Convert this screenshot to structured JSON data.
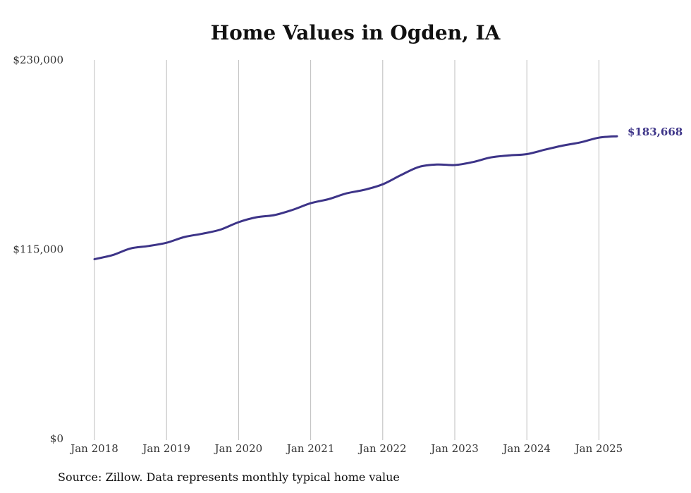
{
  "chart_data": {
    "type": "line",
    "title": "Home Values in Ogden, IA",
    "source": "Source: Zillow. Data represents monthly typical home value",
    "ylim": [
      0,
      230000
    ],
    "y_ticks": [
      {
        "value": 0,
        "label": "$0"
      },
      {
        "value": 115000,
        "label": "$115,000"
      },
      {
        "value": 230000,
        "label": "$230,000"
      }
    ],
    "x_ticks": [
      {
        "value": "2018-01",
        "label": "Jan 2018"
      },
      {
        "value": "2019-01",
        "label": "Jan 2019"
      },
      {
        "value": "2020-01",
        "label": "Jan 2020"
      },
      {
        "value": "2021-01",
        "label": "Jan 2021"
      },
      {
        "value": "2022-01",
        "label": "Jan 2022"
      },
      {
        "value": "2023-01",
        "label": "Jan 2023"
      },
      {
        "value": "2024-01",
        "label": "Jan 2024"
      },
      {
        "value": "2025-01",
        "label": "Jan 2025"
      }
    ],
    "grid": "vertical",
    "line_color": "#3d3488",
    "end_label": "$183,668",
    "series": [
      {
        "x": [
          "2018-01",
          "2018-04",
          "2018-07",
          "2018-10",
          "2019-01",
          "2019-04",
          "2019-07",
          "2019-10",
          "2020-01",
          "2020-04",
          "2020-07",
          "2020-10",
          "2021-01",
          "2021-04",
          "2021-07",
          "2021-10",
          "2022-01",
          "2022-04",
          "2022-07",
          "2022-10",
          "2023-01",
          "2023-04",
          "2023-07",
          "2023-10",
          "2024-01",
          "2024-04",
          "2024-07",
          "2024-10",
          "2025-01",
          "2025-04"
        ],
        "y": [
          109000,
          111500,
          115500,
          117000,
          119000,
          122500,
          124500,
          127000,
          131500,
          134500,
          135800,
          139000,
          143000,
          145500,
          149000,
          151200,
          154500,
          160000,
          165000,
          166500,
          166200,
          168000,
          170800,
          172000,
          172800,
          175500,
          178000,
          180000,
          182800,
          183668
        ]
      }
    ]
  }
}
